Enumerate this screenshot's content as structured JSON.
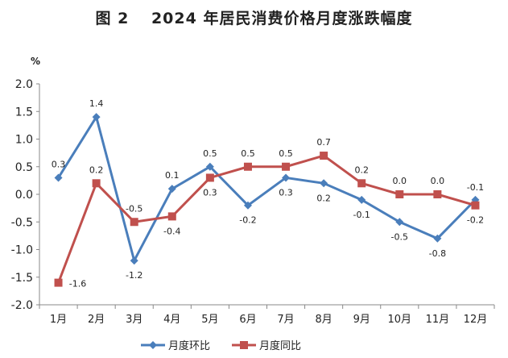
{
  "chart_data": {
    "type": "line",
    "title": "图 2　 2024 年居民消费价格月度涨跌幅度",
    "ylabel": "%",
    "categories": [
      "1月",
      "2月",
      "3月",
      "4月",
      "5月",
      "6月",
      "7月",
      "8月",
      "9月",
      "10月",
      "11月",
      "12月"
    ],
    "ylim": [
      -2.0,
      2.0
    ],
    "yticks": [
      "2.0",
      "1.5",
      "1.0",
      "0.5",
      "0.0",
      "-0.5",
      "-1.0",
      "-1.5",
      "-2.0"
    ],
    "grid": false,
    "legend_position": "bottom",
    "series": [
      {
        "name": "月度环比",
        "color": "#4a7ebb",
        "marker": "diamond",
        "values": [
          0.3,
          1.4,
          -1.2,
          0.1,
          0.5,
          -0.2,
          0.3,
          0.2,
          -0.1,
          -0.5,
          -0.8,
          -0.1
        ]
      },
      {
        "name": "月度同比",
        "color": "#c0504d",
        "marker": "square",
        "values": [
          -1.6,
          0.2,
          -0.5,
          -0.4,
          0.3,
          0.5,
          0.5,
          0.7,
          0.2,
          0.0,
          0.0,
          -0.2
        ]
      }
    ]
  }
}
